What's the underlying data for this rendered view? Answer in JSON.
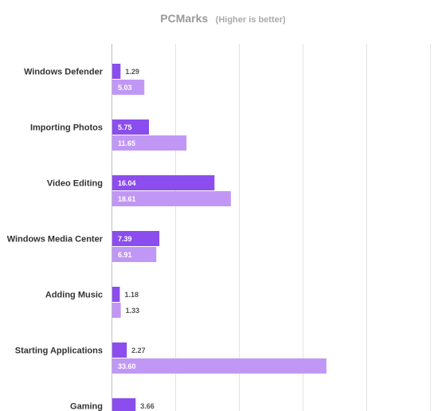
{
  "chart_data": {
    "type": "bar",
    "orientation": "horizontal",
    "title": "PCMarks",
    "subtitle": "(Higher is better)",
    "categories": [
      "Windows Defender",
      "Importing Photos",
      "Video Editing",
      "Windows Media Center",
      "Adding Music",
      "Starting Applications",
      "Gaming"
    ],
    "series": [
      {
        "values": [
          1.29,
          5.75,
          16.04,
          7.39,
          1.18,
          2.27,
          3.66
        ],
        "color": "#8b4ded"
      },
      {
        "values": [
          5.03,
          11.65,
          18.61,
          6.91,
          1.33,
          33.6,
          null
        ],
        "color": "#c197f5"
      }
    ],
    "xlim": [
      0,
      50
    ],
    "grid": true,
    "legend": "none"
  }
}
